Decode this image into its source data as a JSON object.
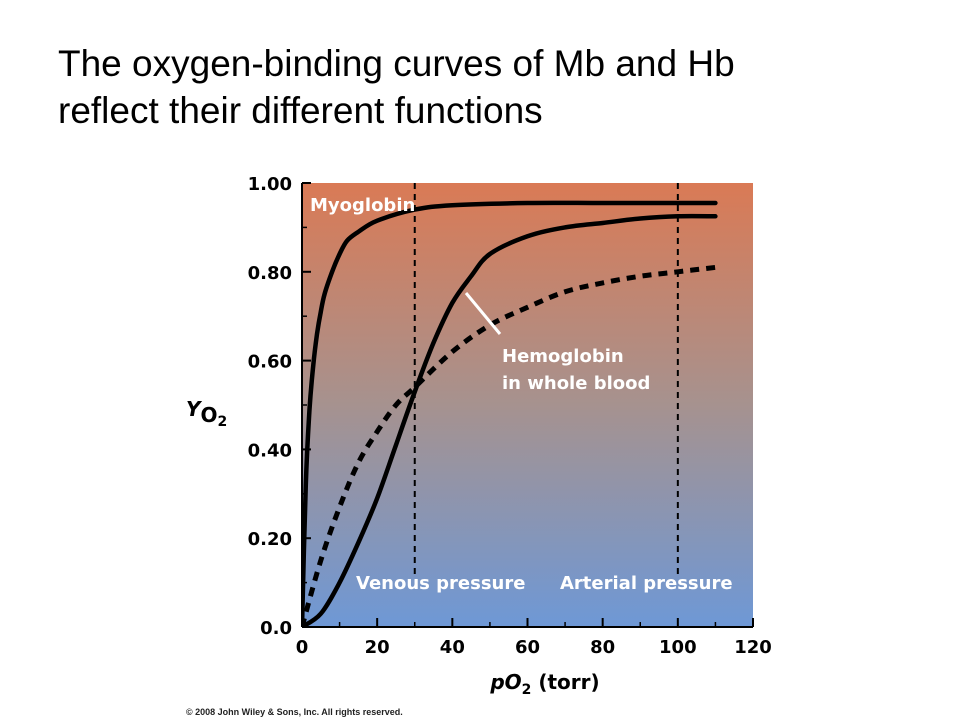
{
  "slide": {
    "title_line1": "The oxygen-binding curves of Mb and Hb",
    "title_line2": "reflect their different functions",
    "copyright": "© 2008 John Wiley & Sons, Inc. All rights reserved."
  },
  "colors": {
    "gradient_top": "#da7a55",
    "gradient_mid": "#a6928f",
    "gradient_bottom": "#6e98d6",
    "curve": "#000000",
    "annotation_text": "#ffffff"
  },
  "chart_data": {
    "type": "line",
    "xlim": [
      0,
      120
    ],
    "ylim": [
      0,
      1
    ],
    "x_ticks": [
      0,
      20,
      40,
      60,
      80,
      100,
      120
    ],
    "x_tick_labels": [
      "0",
      "20",
      "40",
      "60",
      "80",
      "100",
      "120"
    ],
    "y_ticks": [
      0,
      0.2,
      0.4,
      0.6,
      0.8,
      1.0
    ],
    "y_tick_labels": [
      "0.0",
      "0.20",
      "0.40",
      "0.60",
      "0.80",
      "1.00"
    ],
    "xlabel_main": "pO",
    "xlabel_sub": "2",
    "xlabel_unit": " (torr)",
    "ylabel_main": "Y",
    "ylabel_o": "O",
    "ylabel_sub": "2",
    "grid": false,
    "series": [
      {
        "name": "Myoglobin",
        "style": "solid",
        "x": [
          0,
          1,
          2,
          3,
          4,
          5,
          6,
          8,
          10,
          12,
          15,
          20,
          30,
          40,
          60,
          80,
          100,
          110
        ],
        "y": [
          0,
          0.32,
          0.49,
          0.59,
          0.66,
          0.71,
          0.75,
          0.8,
          0.84,
          0.87,
          0.89,
          0.915,
          0.94,
          0.95,
          0.955,
          0.955,
          0.955,
          0.955
        ]
      },
      {
        "name": "Hemoglobin",
        "style": "solid",
        "x": [
          0,
          5,
          10,
          15,
          20,
          25,
          30,
          35,
          40,
          45,
          50,
          60,
          70,
          80,
          90,
          100,
          110
        ],
        "y": [
          0,
          0.03,
          0.1,
          0.19,
          0.29,
          0.41,
          0.53,
          0.64,
          0.73,
          0.79,
          0.84,
          0.88,
          0.9,
          0.91,
          0.92,
          0.925,
          0.925
        ]
      },
      {
        "name": "",
        "style": "dashed",
        "x": [
          0,
          5,
          10,
          15,
          20,
          25,
          30,
          40,
          50,
          60,
          70,
          80,
          90,
          100,
          110
        ],
        "y": [
          0,
          0.15,
          0.27,
          0.37,
          0.44,
          0.5,
          0.54,
          0.62,
          0.68,
          0.72,
          0.755,
          0.775,
          0.79,
          0.8,
          0.81
        ]
      }
    ],
    "reference_lines": [
      {
        "x": 30,
        "label": "Venous pressure"
      },
      {
        "x": 100,
        "label": "Arterial pressure"
      }
    ],
    "annotations": {
      "myoglobin": "Myoglobin",
      "hemoglobin_line1": "Hemoglobin",
      "hemoglobin_line2": "in whole blood"
    }
  }
}
